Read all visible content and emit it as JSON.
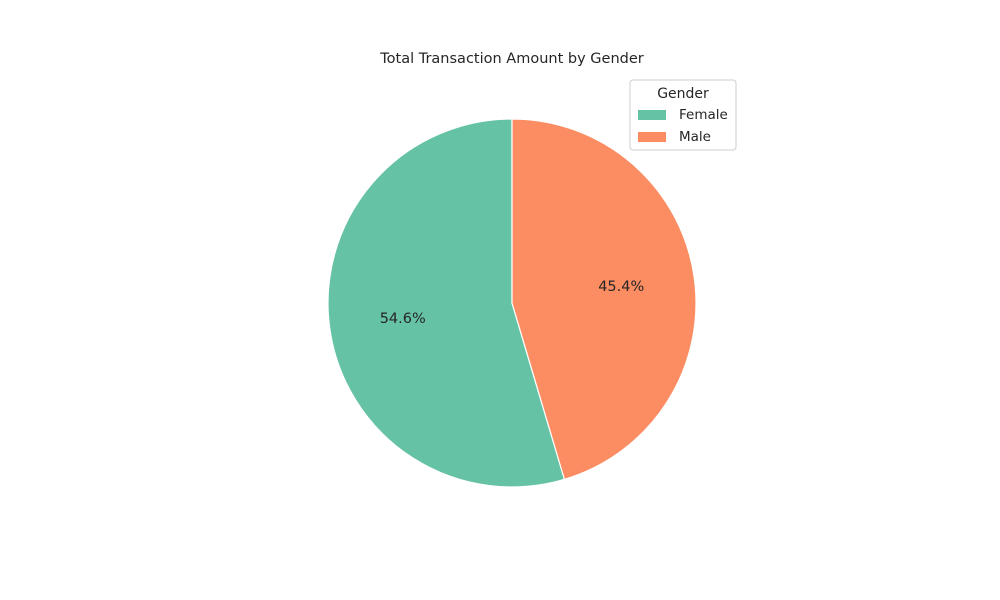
{
  "chart_data": {
    "type": "pie",
    "title": "Total Transaction Amount by Gender",
    "categories": [
      "Female",
      "Male"
    ],
    "values": [
      54.6,
      45.4
    ],
    "labels": [
      "54.6%",
      "45.4%"
    ],
    "colors": [
      "#66c2a5",
      "#fc8d62"
    ],
    "start_angle_deg": 90,
    "direction": "counterclockwise",
    "legend": {
      "title": "Gender",
      "placement": "top-right",
      "entries": [
        "Female",
        "Male"
      ]
    }
  }
}
